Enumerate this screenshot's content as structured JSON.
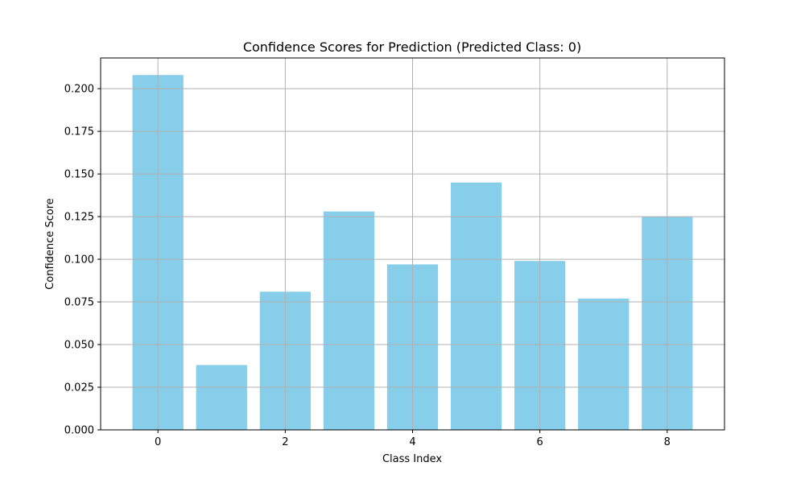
{
  "chart_data": {
    "type": "bar",
    "title": "Confidence Scores for Prediction (Predicted Class: 0)",
    "xlabel": "Class Index",
    "ylabel": "Confidence Score",
    "categories": [
      0,
      1,
      2,
      3,
      4,
      5,
      6,
      7,
      8
    ],
    "values": [
      0.208,
      0.038,
      0.081,
      0.128,
      0.097,
      0.145,
      0.099,
      0.077,
      0.125
    ],
    "xlim": [
      -0.9,
      8.9
    ],
    "ylim": [
      0,
      0.218
    ],
    "x_ticks": [
      0,
      2,
      4,
      6,
      8
    ],
    "x_tick_labels": [
      "0",
      "2",
      "4",
      "6",
      "8"
    ],
    "y_ticks": [
      0,
      0.025,
      0.05,
      0.075,
      0.1,
      0.125,
      0.15,
      0.175,
      0.2
    ],
    "y_tick_labels": [
      "0.000",
      "0.025",
      "0.050",
      "0.075",
      "0.100",
      "0.125",
      "0.150",
      "0.175",
      "0.200"
    ],
    "grid": true,
    "bar_width": 0.8,
    "colors": {
      "bar": "#87ceeb",
      "grid": "#b0b0b0",
      "axis": "#000000"
    }
  }
}
